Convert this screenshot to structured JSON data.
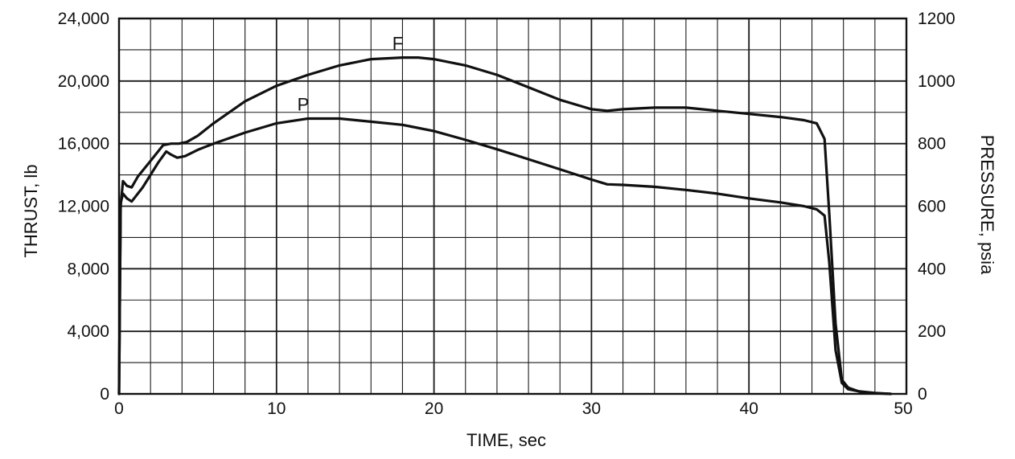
{
  "chart_data": {
    "type": "line",
    "title": "",
    "xlabel": "TIME, sec",
    "ylabel": "THRUST, lb",
    "y2label": "PRESSURE, psia",
    "xlim": [
      0,
      50
    ],
    "ylim": [
      0,
      24000
    ],
    "y2lim": [
      0,
      1200
    ],
    "x_ticks": [
      "0",
      "10",
      "20",
      "30",
      "40",
      "50"
    ],
    "y_ticks": [
      "0",
      "4,000",
      "8,000",
      "12,000",
      "16,000",
      "20,000",
      "24,000"
    ],
    "y2_ticks": [
      "0",
      "200",
      "400",
      "600",
      "800",
      "1000",
      "1200"
    ],
    "grid": true,
    "legend": "none",
    "series": [
      {
        "name": "F",
        "axis": "left",
        "x": [
          0,
          0.1,
          0.25,
          0.5,
          0.8,
          1.2,
          2.0,
          2.8,
          3.3,
          3.8,
          4.3,
          5,
          6,
          8,
          10,
          12,
          14,
          16,
          18,
          19,
          20,
          22,
          24,
          26,
          28,
          30,
          31,
          32,
          34,
          36,
          38,
          40,
          42,
          43.5,
          44.3,
          44.8,
          45.1,
          45.5,
          45.9,
          46.3,
          47.0,
          48.0,
          49.0
        ],
        "values": [
          0,
          12000,
          13600,
          13300,
          13200,
          13900,
          14900,
          15900,
          16000,
          16000,
          16100,
          16500,
          17300,
          18700,
          19700,
          20400,
          21000,
          21400,
          21500,
          21500,
          21400,
          21000,
          20400,
          19600,
          18800,
          18200,
          18100,
          18200,
          18300,
          18300,
          18100,
          17900,
          17700,
          17500,
          17300,
          16300,
          11500,
          4500,
          900,
          400,
          150,
          40,
          0
        ]
      },
      {
        "name": "P",
        "axis": "right",
        "x": [
          0,
          0.1,
          0.25,
          0.5,
          0.8,
          1.5,
          2.5,
          3.0,
          3.3,
          3.7,
          4.2,
          5,
          6,
          8,
          10,
          12,
          13,
          14,
          16,
          18,
          20,
          22,
          24,
          26,
          28,
          30,
          31,
          32,
          34,
          36,
          38,
          40,
          42,
          43.5,
          44.3,
          44.8,
          45.1,
          45.5,
          45.9,
          46.3,
          47.0,
          48.0,
          49.0
        ],
        "values": [
          0,
          610,
          640,
          625,
          615,
          660,
          740,
          775,
          765,
          755,
          760,
          780,
          800,
          835,
          865,
          880,
          880,
          880,
          870,
          860,
          840,
          812,
          782,
          750,
          718,
          685,
          670,
          668,
          662,
          652,
          640,
          625,
          612,
          600,
          590,
          570,
          420,
          140,
          35,
          15,
          8,
          3,
          0
        ]
      }
    ],
    "annotations": [
      {
        "text": "F",
        "series": "F"
      },
      {
        "text": "P",
        "series": "P"
      }
    ]
  }
}
